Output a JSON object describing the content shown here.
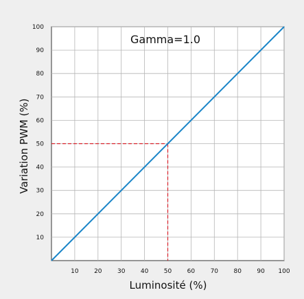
{
  "chart_data": {
    "type": "line",
    "title": "",
    "annotation": "Gamma=1.0",
    "xlabel": "Luminosité (%)",
    "ylabel": "Variation PWM (%)",
    "xlim": [
      0,
      100
    ],
    "ylim": [
      0,
      100
    ],
    "x_ticks": [
      10,
      20,
      30,
      40,
      50,
      60,
      70,
      80,
      90,
      100
    ],
    "y_ticks": [
      10,
      20,
      30,
      40,
      50,
      60,
      70,
      80,
      90,
      100
    ],
    "grid": true,
    "series": [
      {
        "x": [
          0,
          100
        ],
        "y": [
          0,
          100
        ],
        "color": "#1a85c8"
      }
    ],
    "reference_point": {
      "x": 50,
      "y": 50,
      "color": "#d9202a",
      "style": "dashed"
    }
  }
}
